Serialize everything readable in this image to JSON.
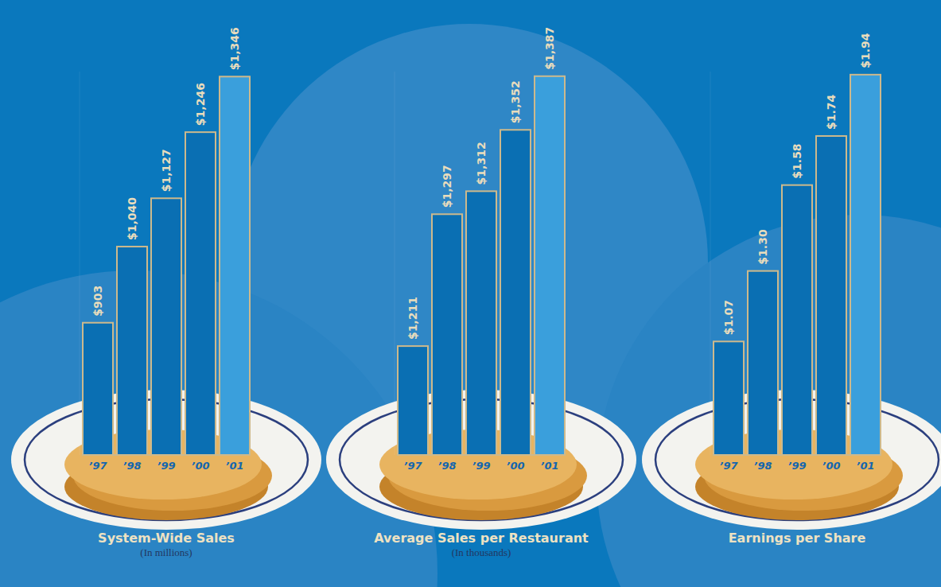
{
  "chart_data": [
    {
      "type": "bar",
      "title": "System-Wide Sales",
      "subtitle": "(In millions)",
      "categories": [
        "’97",
        "’98",
        "’99",
        "’00",
        "’01"
      ],
      "values": [
        903,
        1040,
        1127,
        1246,
        1346
      ],
      "value_labels": [
        "$903",
        "$1,040",
        "$1,127",
        "$1,246",
        "$1,346"
      ],
      "data_labels": true,
      "tick_labels": "x",
      "colors": [
        "#0a6fb3",
        "#0a6fb3",
        "#0a6fb3",
        "#0a6fb3",
        "#3a9fdc"
      ],
      "ylim": [
        665,
        1355
      ]
    },
    {
      "type": "bar",
      "title": "Average Sales per Restaurant",
      "subtitle": "(In thousands)",
      "categories": [
        "’97",
        "’98",
        "’99",
        "’00",
        "’01"
      ],
      "values": [
        1211,
        1297,
        1312,
        1352,
        1387
      ],
      "value_labels": [
        "$1,211",
        "$1,297",
        "$1,312",
        "$1,352",
        "$1,387"
      ],
      "data_labels": true,
      "tick_labels": "x",
      "colors": [
        "#0a6fb3",
        "#0a6fb3",
        "#0a6fb3",
        "#0a6fb3",
        "#3a9fdc"
      ],
      "ylim": [
        1140,
        1390
      ]
    },
    {
      "type": "bar",
      "title": "Earnings per Share",
      "categories": [
        "’97",
        "’98",
        "’99",
        "’00",
        "’01"
      ],
      "values": [
        1.07,
        1.3,
        1.58,
        1.74,
        1.94
      ],
      "value_labels": [
        "$1.07",
        "$1.30",
        "$1.58",
        "$1.74",
        "$1.94"
      ],
      "data_labels": true,
      "tick_labels": "x",
      "colors": [
        "#0a6fb3",
        "#0a6fb3",
        "#0a6fb3",
        "#0a6fb3",
        "#3a9fdc"
      ],
      "ylim": [
        0.7,
        1.95
      ]
    }
  ]
}
